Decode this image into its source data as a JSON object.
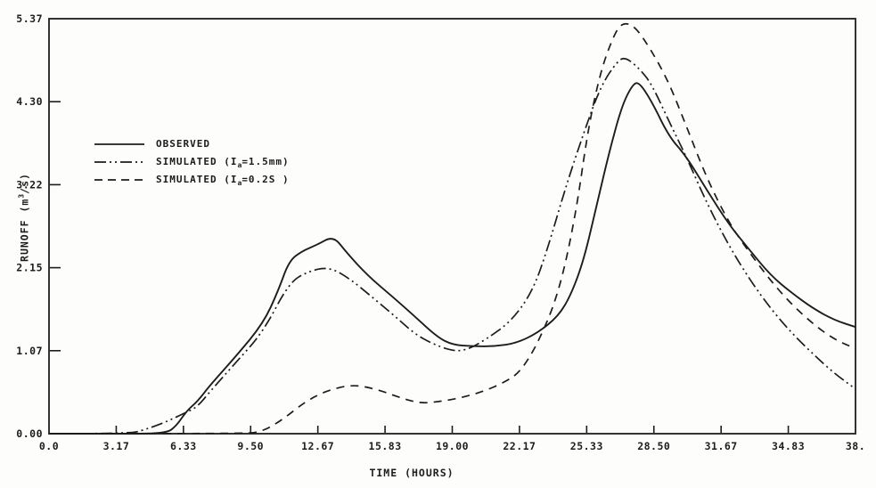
{
  "figure": {
    "background": "#fdfdfb",
    "ink": "#1d1d1d"
  },
  "chart_data": {
    "type": "line",
    "title": "",
    "xlabel": "TIME (HOURS)",
    "ylabel": "RUNOFF (m3/s)",
    "ylabel_parts": {
      "pre": "RUNOFF (m",
      "sup": "3",
      "post": "/s)"
    },
    "xlim": [
      0,
      38
    ],
    "ylim": [
      0,
      5.37
    ],
    "grid": false,
    "frame": "box",
    "legend_position": "upper-left-inside",
    "xticks": {
      "values": [
        0,
        3.1667,
        6.3333,
        9.5,
        12.6667,
        15.8333,
        19.0,
        22.1667,
        25.3333,
        28.5,
        31.6667,
        34.8333,
        38
      ],
      "labels": [
        "0.0",
        "3.17",
        "6.33",
        "9.50",
        "12.67",
        "15.83",
        "19.00",
        "22.17",
        "25.33",
        "28.50",
        "31.67",
        "34.83",
        "38."
      ]
    },
    "yticks": {
      "values": [
        0,
        1.074,
        2.148,
        3.222,
        4.296,
        5.37
      ],
      "labels": [
        "0.00",
        "1.07",
        "2.15",
        "3.22",
        "4.30",
        "5.37"
      ]
    },
    "legend": {
      "entries": [
        {
          "label": "OBSERVED",
          "label_parts": {
            "pre": "OBSERVED",
            "sub": "",
            "post": ""
          },
          "style": "solid"
        },
        {
          "label": "SIMULATED (Ia=1.5mm)",
          "label_parts": {
            "pre": "SIMULATED (I",
            "sub": "a",
            "post": "=1.5mm)"
          },
          "style": "dash-dot-dot"
        },
        {
          "label": "SIMULATED (Ia=0.2S )",
          "label_parts": {
            "pre": "SIMULATED (I",
            "sub": "a",
            "post": "=0.2S )"
          },
          "style": "dashed"
        }
      ]
    },
    "series": [
      {
        "id": "observed",
        "name": "OBSERVED",
        "style": "solid",
        "points": [
          [
            0,
            0
          ],
          [
            3,
            0
          ],
          [
            5.5,
            0
          ],
          [
            6.0,
            0.1
          ],
          [
            6.5,
            0.3
          ],
          [
            7.0,
            0.42
          ],
          [
            7.6,
            0.63
          ],
          [
            8.8,
            1.0
          ],
          [
            10.1,
            1.43
          ],
          [
            10.8,
            1.85
          ],
          [
            11.3,
            2.23
          ],
          [
            11.9,
            2.36
          ],
          [
            12.6,
            2.44
          ],
          [
            13.4,
            2.56
          ],
          [
            14.0,
            2.35
          ],
          [
            15.0,
            2.05
          ],
          [
            16.2,
            1.77
          ],
          [
            17.3,
            1.5
          ],
          [
            18.3,
            1.25
          ],
          [
            19.0,
            1.15
          ],
          [
            20.0,
            1.13
          ],
          [
            21.0,
            1.13
          ],
          [
            22.0,
            1.17
          ],
          [
            23.0,
            1.3
          ],
          [
            24.0,
            1.52
          ],
          [
            24.6,
            1.8
          ],
          [
            25.2,
            2.25
          ],
          [
            25.8,
            2.95
          ],
          [
            26.4,
            3.65
          ],
          [
            27.0,
            4.25
          ],
          [
            27.5,
            4.52
          ],
          [
            27.8,
            4.55
          ],
          [
            28.4,
            4.3
          ],
          [
            29.2,
            3.85
          ],
          [
            30.0,
            3.6
          ],
          [
            31.0,
            3.15
          ],
          [
            32.0,
            2.72
          ],
          [
            33.0,
            2.38
          ],
          [
            34.0,
            2.05
          ],
          [
            35.0,
            1.82
          ],
          [
            36.0,
            1.62
          ],
          [
            37.0,
            1.47
          ],
          [
            38.0,
            1.38
          ]
        ]
      },
      {
        "id": "simulated-ia-1-5mm",
        "name": "SIMULATED (Ia=1.5mm)",
        "style": "dash-dot-dot",
        "points": [
          [
            0,
            0
          ],
          [
            3.8,
            0
          ],
          [
            4.5,
            0.05
          ],
          [
            5.5,
            0.15
          ],
          [
            6.5,
            0.28
          ],
          [
            7.0,
            0.35
          ],
          [
            7.6,
            0.55
          ],
          [
            8.8,
            0.92
          ],
          [
            10.1,
            1.32
          ],
          [
            11.3,
            1.95
          ],
          [
            12.2,
            2.1
          ],
          [
            13.2,
            2.16
          ],
          [
            14.2,
            2.0
          ],
          [
            15.3,
            1.75
          ],
          [
            16.3,
            1.52
          ],
          [
            17.4,
            1.25
          ],
          [
            18.8,
            1.08
          ],
          [
            19.6,
            1.07
          ],
          [
            20.6,
            1.22
          ],
          [
            21.8,
            1.46
          ],
          [
            22.8,
            1.85
          ],
          [
            23.5,
            2.4
          ],
          [
            24.3,
            3.15
          ],
          [
            25.2,
            3.9
          ],
          [
            26.0,
            4.5
          ],
          [
            26.8,
            4.83
          ],
          [
            27.2,
            4.87
          ],
          [
            27.9,
            4.7
          ],
          [
            28.4,
            4.52
          ],
          [
            29.2,
            4.05
          ],
          [
            30.0,
            3.6
          ],
          [
            31.0,
            2.98
          ],
          [
            32.0,
            2.45
          ],
          [
            33.0,
            2.0
          ],
          [
            34.0,
            1.62
          ],
          [
            35.0,
            1.3
          ],
          [
            36.0,
            1.03
          ],
          [
            37.0,
            0.78
          ],
          [
            38.0,
            0.58
          ]
        ]
      },
      {
        "id": "simulated-ia-0-2s",
        "name": "SIMULATED (Ia=0.2S)",
        "style": "dashed",
        "points": [
          [
            0,
            0
          ],
          [
            9.0,
            0
          ],
          [
            10.0,
            0.02
          ],
          [
            11.0,
            0.18
          ],
          [
            12.0,
            0.4
          ],
          [
            13.0,
            0.55
          ],
          [
            14.3,
            0.64
          ],
          [
            15.5,
            0.57
          ],
          [
            16.5,
            0.47
          ],
          [
            17.5,
            0.39
          ],
          [
            18.5,
            0.42
          ],
          [
            19.5,
            0.47
          ],
          [
            20.5,
            0.55
          ],
          [
            21.5,
            0.67
          ],
          [
            22.2,
            0.8
          ],
          [
            23.0,
            1.15
          ],
          [
            24.0,
            1.8
          ],
          [
            24.8,
            2.8
          ],
          [
            25.4,
            3.95
          ],
          [
            26.0,
            4.7
          ],
          [
            26.6,
            5.15
          ],
          [
            27.0,
            5.32
          ],
          [
            27.6,
            5.28
          ],
          [
            28.4,
            4.95
          ],
          [
            29.2,
            4.55
          ],
          [
            30.0,
            4.0
          ],
          [
            31.0,
            3.3
          ],
          [
            32.0,
            2.75
          ],
          [
            32.8,
            2.42
          ],
          [
            34.0,
            1.98
          ],
          [
            35.0,
            1.67
          ],
          [
            36.0,
            1.42
          ],
          [
            37.0,
            1.22
          ],
          [
            38.0,
            1.1
          ]
        ]
      }
    ]
  }
}
